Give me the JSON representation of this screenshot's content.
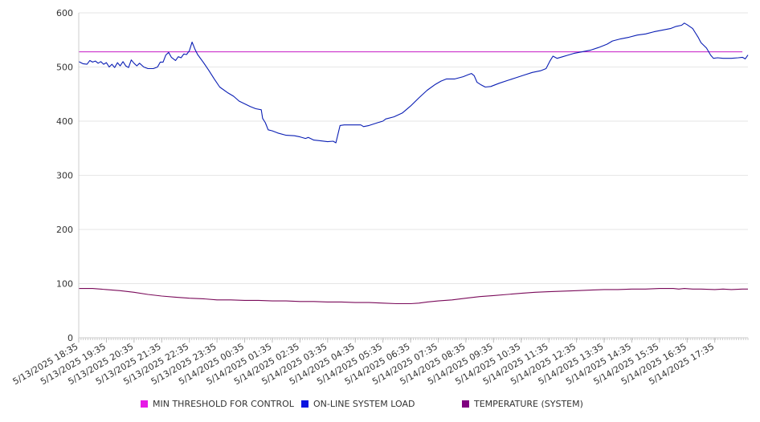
{
  "chart_data": {
    "type": "line",
    "title": "",
    "xlabel": "",
    "ylabel": "",
    "ylim": [
      0,
      600
    ],
    "yticks": [
      0,
      100,
      200,
      300,
      400,
      500,
      600
    ],
    "grid": "horizontal",
    "legend_position": "bottom",
    "x_tick_labels": [
      "5/13/2025 18:35",
      "5/13/2025 19:35",
      "5/13/2025 20:35",
      "5/13/2025 21:35",
      "5/13/2025 22:35",
      "5/13/2025 23:35",
      "5/14/2025 00:35",
      "5/14/2025 01:35",
      "5/14/2025 02:35",
      "5/14/2025 03:35",
      "5/14/2025 04:35",
      "5/14/2025 05:35",
      "5/14/2025 06:35",
      "5/14/2025 07:35",
      "5/14/2025 08:35",
      "5/14/2025 09:35",
      "5/14/2025 10:35",
      "5/14/2025 11:35",
      "5/14/2025 12:35",
      "5/14/2025 13:35",
      "5/14/2025 14:35",
      "5/14/2025 15:35",
      "5/14/2025 16:35",
      "5/14/2025 17:35"
    ],
    "series": [
      {
        "name": "MIN THRESHOLD FOR CONTROL",
        "color": "#e619e6",
        "line_color": "#cc33cc",
        "points": [
          [
            0,
            528
          ],
          [
            24,
            528
          ]
        ]
      },
      {
        "name": "ON-LINE SYSTEM LOAD",
        "color": "#0a14e0",
        "line_color": "#0a1eb4",
        "points": [
          [
            0,
            510
          ],
          [
            0.15,
            506
          ],
          [
            0.3,
            505
          ],
          [
            0.4,
            512
          ],
          [
            0.5,
            509
          ],
          [
            0.6,
            511
          ],
          [
            0.7,
            507
          ],
          [
            0.8,
            510
          ],
          [
            0.9,
            505
          ],
          [
            1.0,
            508
          ],
          [
            1.1,
            500
          ],
          [
            1.2,
            505
          ],
          [
            1.3,
            499
          ],
          [
            1.4,
            508
          ],
          [
            1.5,
            502
          ],
          [
            1.6,
            510
          ],
          [
            1.7,
            502
          ],
          [
            1.8,
            499
          ],
          [
            1.9,
            513
          ],
          [
            2.0,
            507
          ],
          [
            2.1,
            502
          ],
          [
            2.2,
            507
          ],
          [
            2.35,
            500
          ],
          [
            2.5,
            497
          ],
          [
            2.7,
            497
          ],
          [
            2.85,
            500
          ],
          [
            2.95,
            509
          ],
          [
            3.05,
            509
          ],
          [
            3.15,
            522
          ],
          [
            3.25,
            527
          ],
          [
            3.35,
            518
          ],
          [
            3.5,
            512
          ],
          [
            3.6,
            519
          ],
          [
            3.7,
            517
          ],
          [
            3.8,
            524
          ],
          [
            3.9,
            523
          ],
          [
            4.0,
            530
          ],
          [
            4.1,
            546
          ],
          [
            4.2,
            533
          ],
          [
            4.3,
            523
          ],
          [
            4.5,
            509
          ],
          [
            4.7,
            494
          ],
          [
            4.9,
            478
          ],
          [
            5.1,
            463
          ],
          [
            5.4,
            452
          ],
          [
            5.6,
            446
          ],
          [
            5.8,
            437
          ],
          [
            6.0,
            432
          ],
          [
            6.2,
            427
          ],
          [
            6.4,
            423
          ],
          [
            6.6,
            421
          ],
          [
            6.65,
            405
          ],
          [
            6.75,
            397
          ],
          [
            6.85,
            384
          ],
          [
            7.0,
            382
          ],
          [
            7.2,
            378
          ],
          [
            7.5,
            374
          ],
          [
            7.8,
            373
          ],
          [
            8.0,
            371
          ],
          [
            8.2,
            368
          ],
          [
            8.3,
            370
          ],
          [
            8.5,
            365
          ],
          [
            8.7,
            364
          ],
          [
            9.0,
            362
          ],
          [
            9.2,
            363
          ],
          [
            9.3,
            360
          ],
          [
            9.45,
            392
          ],
          [
            9.6,
            393
          ],
          [
            10.2,
            393
          ],
          [
            10.3,
            390
          ],
          [
            10.5,
            392
          ],
          [
            10.8,
            397
          ],
          [
            11.0,
            400
          ],
          [
            11.1,
            404
          ],
          [
            11.4,
            408
          ],
          [
            11.7,
            415
          ],
          [
            12.0,
            428
          ],
          [
            12.3,
            443
          ],
          [
            12.6,
            457
          ],
          [
            12.9,
            468
          ],
          [
            13.1,
            474
          ],
          [
            13.3,
            478
          ],
          [
            13.6,
            478
          ],
          [
            13.9,
            482
          ],
          [
            14.1,
            486
          ],
          [
            14.2,
            488
          ],
          [
            14.3,
            484
          ],
          [
            14.4,
            472
          ],
          [
            14.55,
            467
          ],
          [
            14.7,
            463
          ],
          [
            14.9,
            464
          ],
          [
            15.2,
            470
          ],
          [
            15.5,
            475
          ],
          [
            15.8,
            480
          ],
          [
            16.1,
            485
          ],
          [
            16.4,
            490
          ],
          [
            16.7,
            493
          ],
          [
            16.9,
            497
          ],
          [
            17.05,
            512
          ],
          [
            17.15,
            520
          ],
          [
            17.3,
            516
          ],
          [
            17.5,
            519
          ],
          [
            17.7,
            522
          ],
          [
            17.9,
            525
          ],
          [
            18.2,
            528
          ],
          [
            18.5,
            531
          ],
          [
            18.8,
            536
          ],
          [
            19.1,
            542
          ],
          [
            19.3,
            548
          ],
          [
            19.6,
            552
          ],
          [
            19.9,
            555
          ],
          [
            20.2,
            559
          ],
          [
            20.5,
            561
          ],
          [
            20.8,
            565
          ],
          [
            21.1,
            568
          ],
          [
            21.4,
            571
          ],
          [
            21.6,
            575
          ],
          [
            21.8,
            577
          ],
          [
            21.9,
            581
          ],
          [
            22.0,
            578
          ],
          [
            22.2,
            571
          ],
          [
            22.3,
            563
          ],
          [
            22.4,
            555
          ],
          [
            22.5,
            545
          ],
          [
            22.7,
            535
          ],
          [
            22.85,
            522
          ],
          [
            22.95,
            516
          ],
          [
            23.1,
            517
          ],
          [
            23.3,
            516
          ],
          [
            23.6,
            516
          ],
          [
            23.85,
            517
          ],
          [
            24.0,
            518
          ],
          [
            24.1,
            515
          ],
          [
            24.2,
            522
          ]
        ]
      },
      {
        "name": "TEMPERATURE (SYSTEM)",
        "color": "#800080",
        "line_color": "#7a0a5a",
        "points": [
          [
            0,
            91
          ],
          [
            0.5,
            91
          ],
          [
            1.0,
            89
          ],
          [
            1.5,
            87
          ],
          [
            2.0,
            84
          ],
          [
            2.5,
            80
          ],
          [
            3.0,
            77
          ],
          [
            3.5,
            75
          ],
          [
            4.0,
            73
          ],
          [
            4.5,
            72
          ],
          [
            5.0,
            70
          ],
          [
            5.5,
            70
          ],
          [
            6.0,
            69
          ],
          [
            6.5,
            69
          ],
          [
            7.0,
            68
          ],
          [
            7.5,
            68
          ],
          [
            8.0,
            67
          ],
          [
            8.5,
            67
          ],
          [
            9.0,
            66
          ],
          [
            9.5,
            66
          ],
          [
            10.0,
            65
          ],
          [
            10.5,
            65
          ],
          [
            11.0,
            64
          ],
          [
            11.5,
            63
          ],
          [
            12.0,
            63
          ],
          [
            12.3,
            64
          ],
          [
            12.6,
            66
          ],
          [
            13.0,
            68
          ],
          [
            13.5,
            70
          ],
          [
            14.0,
            73
          ],
          [
            14.5,
            76
          ],
          [
            15.0,
            78
          ],
          [
            15.5,
            80
          ],
          [
            16.0,
            82
          ],
          [
            16.5,
            84
          ],
          [
            17.0,
            85
          ],
          [
            17.5,
            86
          ],
          [
            18.0,
            87
          ],
          [
            18.5,
            88
          ],
          [
            19.0,
            89
          ],
          [
            19.5,
            89
          ],
          [
            20.0,
            90
          ],
          [
            20.5,
            90
          ],
          [
            21.0,
            91
          ],
          [
            21.5,
            91
          ],
          [
            21.7,
            90
          ],
          [
            21.9,
            91
          ],
          [
            22.2,
            90
          ],
          [
            22.5,
            90
          ],
          [
            23.0,
            89
          ],
          [
            23.3,
            90
          ],
          [
            23.6,
            89
          ],
          [
            24.0,
            90
          ],
          [
            24.2,
            90
          ]
        ]
      }
    ]
  }
}
